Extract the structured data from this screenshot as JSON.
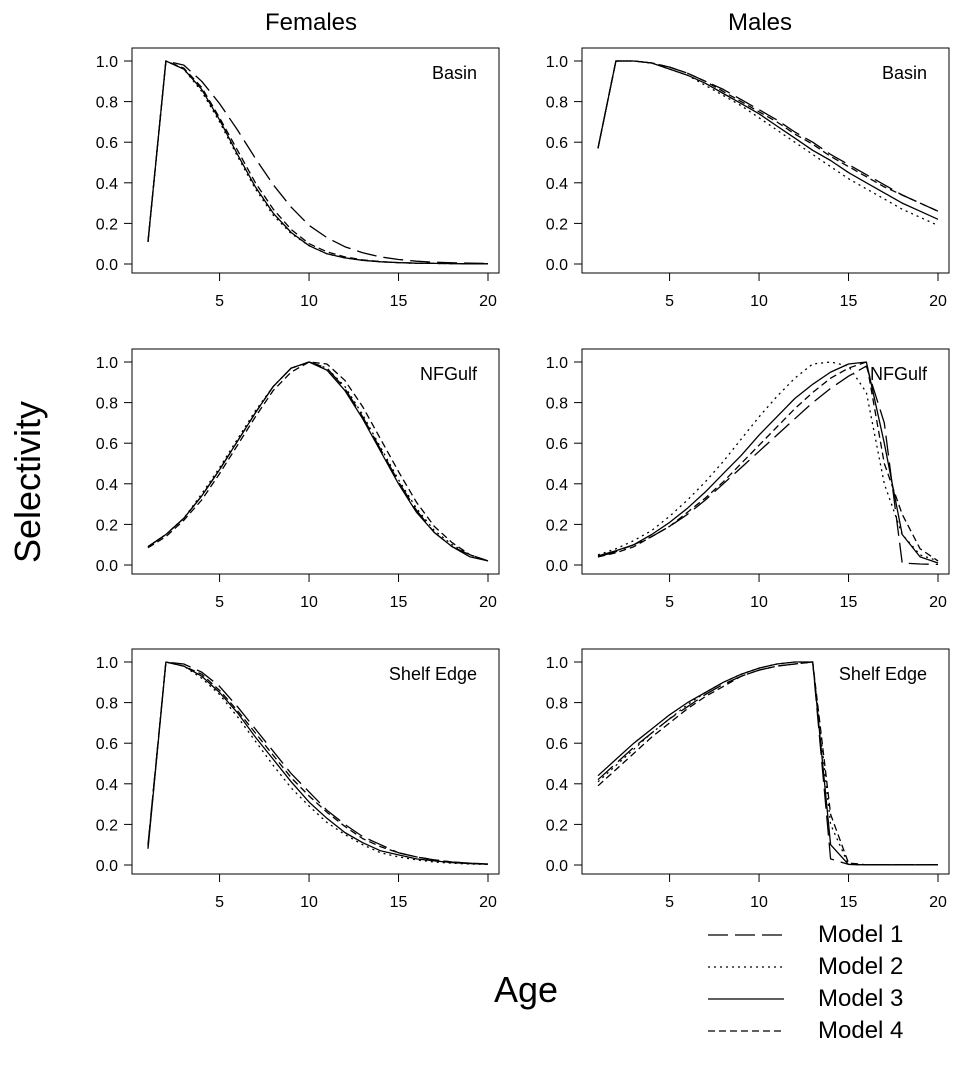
{
  "figure": {
    "ylabel": "Selectivity",
    "xlabel": "Age",
    "column_titles": [
      "Females",
      "Males"
    ],
    "legend": {
      "placement": "bottom-right",
      "entries": [
        {
          "label": "Model 1",
          "dash": "long-dash"
        },
        {
          "label": "Model 2",
          "dash": "dotted"
        },
        {
          "label": "Model 3",
          "dash": "solid"
        },
        {
          "label": "Model 4",
          "dash": "short-dash"
        }
      ]
    },
    "line_color": "#000000"
  },
  "chart_data": [
    {
      "type": "line",
      "panel": "Females",
      "title": "Basin",
      "x": [
        1,
        2,
        3,
        4,
        5,
        6,
        7,
        8,
        9,
        10,
        11,
        12,
        13,
        14,
        15,
        16,
        17,
        18,
        19,
        20
      ],
      "xticks": [
        5,
        10,
        15,
        20
      ],
      "yticks": [
        "0.0",
        "0.2",
        "0.4",
        "0.6",
        "0.8",
        "1.0"
      ],
      "xlim": [
        1,
        20
      ],
      "ylim": [
        0,
        1
      ],
      "series": [
        {
          "name": "Model 1",
          "values": [
            0.11,
            1.0,
            0.98,
            0.9,
            0.79,
            0.66,
            0.52,
            0.39,
            0.28,
            0.19,
            0.13,
            0.085,
            0.055,
            0.035,
            0.022,
            0.014,
            0.009,
            0.006,
            0.004,
            0.003
          ]
        },
        {
          "name": "Model 2",
          "values": [
            0.11,
            1.0,
            0.96,
            0.85,
            0.7,
            0.53,
            0.37,
            0.24,
            0.15,
            0.09,
            0.05,
            0.03,
            0.018,
            0.011,
            0.007,
            0.004,
            0.003,
            0.002,
            0.001,
            0.001
          ]
        },
        {
          "name": "Model 3",
          "values": [
            0.11,
            1.0,
            0.96,
            0.86,
            0.71,
            0.54,
            0.38,
            0.25,
            0.155,
            0.09,
            0.05,
            0.03,
            0.018,
            0.011,
            0.007,
            0.004,
            0.003,
            0.002,
            0.001,
            0.001
          ]
        },
        {
          "name": "Model 4",
          "values": [
            0.11,
            1.0,
            0.965,
            0.87,
            0.72,
            0.56,
            0.4,
            0.27,
            0.17,
            0.1,
            0.06,
            0.035,
            0.02,
            0.012,
            0.007,
            0.004,
            0.003,
            0.002,
            0.001,
            0.001
          ]
        }
      ]
    },
    {
      "type": "line",
      "panel": "Males",
      "title": "Basin",
      "x": [
        1,
        2,
        3,
        4,
        5,
        6,
        7,
        8,
        9,
        10,
        11,
        12,
        13,
        14,
        15,
        16,
        17,
        18,
        19,
        20
      ],
      "xticks": [
        5,
        10,
        15,
        20
      ],
      "yticks": [
        "0.0",
        "0.2",
        "0.4",
        "0.6",
        "0.8",
        "1.0"
      ],
      "xlim": [
        1,
        20
      ],
      "ylim": [
        0,
        1
      ],
      "series": [
        {
          "name": "Model 1",
          "values": [
            0.57,
            1.0,
            1.0,
            0.99,
            0.97,
            0.94,
            0.9,
            0.86,
            0.81,
            0.76,
            0.71,
            0.65,
            0.6,
            0.54,
            0.49,
            0.44,
            0.39,
            0.34,
            0.3,
            0.26
          ]
        },
        {
          "name": "Model 2",
          "values": [
            0.57,
            1.0,
            1.0,
            0.99,
            0.96,
            0.93,
            0.88,
            0.83,
            0.78,
            0.72,
            0.66,
            0.6,
            0.54,
            0.48,
            0.42,
            0.37,
            0.32,
            0.27,
            0.23,
            0.19
          ]
        },
        {
          "name": "Model 3",
          "values": [
            0.57,
            1.0,
            1.0,
            0.99,
            0.96,
            0.93,
            0.89,
            0.84,
            0.79,
            0.74,
            0.68,
            0.62,
            0.56,
            0.51,
            0.45,
            0.4,
            0.35,
            0.3,
            0.26,
            0.22
          ]
        },
        {
          "name": "Model 4",
          "values": [
            0.57,
            1.0,
            1.0,
            0.99,
            0.97,
            0.94,
            0.9,
            0.85,
            0.8,
            0.75,
            0.7,
            0.64,
            0.59,
            0.53,
            0.48,
            0.43,
            0.38,
            0.34,
            0.3,
            0.26
          ]
        }
      ]
    },
    {
      "type": "line",
      "panel": "Females",
      "title": "NFGulf",
      "x": [
        1,
        2,
        3,
        4,
        5,
        6,
        7,
        8,
        9,
        10,
        11,
        12,
        13,
        14,
        15,
        16,
        17,
        18,
        19,
        20
      ],
      "xticks": [
        5,
        10,
        15,
        20
      ],
      "yticks": [
        "0.0",
        "0.2",
        "0.4",
        "0.6",
        "0.8",
        "1.0"
      ],
      "xlim": [
        1,
        20
      ],
      "ylim": [
        0,
        1
      ],
      "series": [
        {
          "name": "Model 1",
          "values": [
            0.09,
            0.15,
            0.23,
            0.34,
            0.47,
            0.61,
            0.75,
            0.88,
            0.97,
            1.0,
            0.97,
            0.87,
            0.73,
            0.57,
            0.41,
            0.27,
            0.16,
            0.09,
            0.05,
            0.02
          ]
        },
        {
          "name": "Model 2",
          "values": [
            0.09,
            0.15,
            0.23,
            0.35,
            0.48,
            0.62,
            0.76,
            0.88,
            0.97,
            1.0,
            0.97,
            0.88,
            0.74,
            0.58,
            0.42,
            0.28,
            0.17,
            0.1,
            0.05,
            0.02
          ]
        },
        {
          "name": "Model 3",
          "values": [
            0.09,
            0.15,
            0.23,
            0.34,
            0.47,
            0.61,
            0.75,
            0.88,
            0.97,
            1.0,
            0.96,
            0.86,
            0.72,
            0.56,
            0.4,
            0.26,
            0.16,
            0.09,
            0.04,
            0.02
          ]
        },
        {
          "name": "Model 4",
          "values": [
            0.085,
            0.14,
            0.22,
            0.32,
            0.45,
            0.59,
            0.73,
            0.86,
            0.95,
            1.0,
            0.99,
            0.91,
            0.78,
            0.62,
            0.46,
            0.31,
            0.19,
            0.11,
            0.05,
            0.02
          ]
        }
      ]
    },
    {
      "type": "line",
      "panel": "Males",
      "title": "NFGulf",
      "x": [
        1,
        2,
        3,
        4,
        5,
        6,
        7,
        8,
        9,
        10,
        11,
        12,
        13,
        14,
        15,
        16,
        17,
        18,
        19,
        20
      ],
      "xticks": [
        5,
        10,
        15,
        20
      ],
      "yticks": [
        "0.0",
        "0.2",
        "0.4",
        "0.6",
        "0.8",
        "1.0"
      ],
      "xlim": [
        1,
        20
      ],
      "ylim": [
        0,
        1
      ],
      "series": [
        {
          "name": "Model 1",
          "values": [
            0.04,
            0.065,
            0.1,
            0.14,
            0.19,
            0.25,
            0.32,
            0.4,
            0.48,
            0.56,
            0.64,
            0.72,
            0.8,
            0.87,
            0.93,
            0.98,
            0.7,
            0.01,
            0.005,
            0.003
          ]
        },
        {
          "name": "Model 2",
          "values": [
            0.05,
            0.08,
            0.12,
            0.17,
            0.24,
            0.32,
            0.41,
            0.51,
            0.62,
            0.73,
            0.83,
            0.92,
            0.99,
            1.0,
            0.98,
            0.85,
            0.4,
            0.15,
            0.05,
            0.02
          ]
        },
        {
          "name": "Model 3",
          "values": [
            0.045,
            0.07,
            0.1,
            0.15,
            0.21,
            0.28,
            0.36,
            0.45,
            0.54,
            0.64,
            0.73,
            0.82,
            0.89,
            0.95,
            0.99,
            1.0,
            0.6,
            0.15,
            0.04,
            0.01
          ]
        },
        {
          "name": "Model 4",
          "values": [
            0.04,
            0.06,
            0.09,
            0.14,
            0.19,
            0.26,
            0.33,
            0.41,
            0.5,
            0.59,
            0.68,
            0.77,
            0.85,
            0.92,
            0.97,
            1.0,
            0.5,
            0.25,
            0.08,
            0.02
          ]
        }
      ]
    },
    {
      "type": "line",
      "panel": "Females",
      "title": "Shelf Edge",
      "x": [
        1,
        2,
        3,
        4,
        5,
        6,
        7,
        8,
        9,
        10,
        11,
        12,
        13,
        14,
        15,
        16,
        17,
        18,
        19,
        20
      ],
      "xticks": [
        5,
        10,
        15,
        20
      ],
      "yticks": [
        "0.0",
        "0.2",
        "0.4",
        "0.6",
        "0.8",
        "1.0"
      ],
      "xlim": [
        1,
        20
      ],
      "ylim": [
        0,
        1
      ],
      "series": [
        {
          "name": "Model 1",
          "values": [
            0.1,
            1.0,
            0.99,
            0.95,
            0.88,
            0.78,
            0.67,
            0.56,
            0.45,
            0.36,
            0.27,
            0.2,
            0.14,
            0.1,
            0.06,
            0.04,
            0.025,
            0.015,
            0.009,
            0.005
          ]
        },
        {
          "name": "Model 2",
          "values": [
            0.1,
            1.0,
            0.98,
            0.92,
            0.84,
            0.73,
            0.61,
            0.49,
            0.38,
            0.29,
            0.21,
            0.15,
            0.1,
            0.06,
            0.04,
            0.025,
            0.015,
            0.009,
            0.005,
            0.003
          ]
        },
        {
          "name": "Model 3",
          "values": [
            0.08,
            1.0,
            0.98,
            0.93,
            0.85,
            0.75,
            0.63,
            0.52,
            0.41,
            0.31,
            0.23,
            0.16,
            0.11,
            0.07,
            0.05,
            0.03,
            0.02,
            0.012,
            0.007,
            0.004
          ]
        },
        {
          "name": "Model 4",
          "values": [
            0.09,
            1.0,
            0.98,
            0.94,
            0.86,
            0.76,
            0.65,
            0.54,
            0.43,
            0.34,
            0.26,
            0.19,
            0.13,
            0.09,
            0.06,
            0.04,
            0.025,
            0.015,
            0.009,
            0.005
          ]
        }
      ]
    },
    {
      "type": "line",
      "panel": "Males",
      "title": "Shelf Edge",
      "x": [
        1,
        2,
        3,
        4,
        5,
        6,
        7,
        8,
        9,
        10,
        11,
        12,
        13,
        14,
        15,
        16,
        17,
        18,
        19,
        20
      ],
      "xticks": [
        5,
        10,
        15,
        20
      ],
      "yticks": [
        "0.0",
        "0.2",
        "0.4",
        "0.6",
        "0.8",
        "1.0"
      ],
      "xlim": [
        1,
        20
      ],
      "ylim": [
        0,
        1
      ],
      "series": [
        {
          "name": "Model 1",
          "values": [
            0.42,
            0.5,
            0.58,
            0.65,
            0.72,
            0.78,
            0.84,
            0.89,
            0.93,
            0.96,
            0.98,
            0.99,
            1.0,
            0.03,
            0.003,
            0.001,
            0.001,
            0.001,
            0.001,
            0.001
          ]
        },
        {
          "name": "Model 2",
          "values": [
            0.41,
            0.49,
            0.57,
            0.65,
            0.72,
            0.79,
            0.85,
            0.9,
            0.94,
            0.97,
            0.99,
            1.0,
            1.0,
            0.2,
            0.003,
            0.001,
            0.001,
            0.001,
            0.001,
            0.001
          ]
        },
        {
          "name": "Model 3",
          "values": [
            0.44,
            0.52,
            0.6,
            0.67,
            0.74,
            0.8,
            0.85,
            0.9,
            0.94,
            0.97,
            0.99,
            1.0,
            1.0,
            0.1,
            0.003,
            0.001,
            0.001,
            0.001,
            0.001,
            0.001
          ]
        },
        {
          "name": "Model 4",
          "values": [
            0.39,
            0.47,
            0.55,
            0.63,
            0.7,
            0.77,
            0.83,
            0.88,
            0.93,
            0.96,
            0.98,
            0.99,
            1.0,
            0.25,
            0.01,
            0.001,
            0.001,
            0.001,
            0.001,
            0.001
          ]
        }
      ]
    }
  ]
}
